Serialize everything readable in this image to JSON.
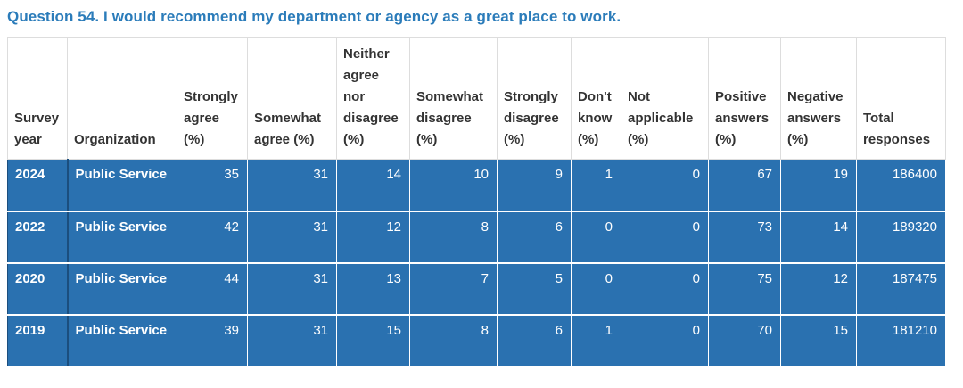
{
  "title": {
    "text": "Question 54. I would recommend my department or agency as a great place to work."
  },
  "colors": {
    "title_blue": "#2b7cba",
    "row_blue": "#2a71b0",
    "row_text": "#ffffff",
    "header_text": "#333333",
    "border_light": "#dddddd",
    "border_dark_blue": "#1b4e7e"
  },
  "table": {
    "columns": [
      "Survey year",
      "Organization",
      "Strongly agree (%)",
      "Somewhat agree (%)",
      "Neither agree nor disagree (%)",
      "Somewhat disagree (%)",
      "Strongly disagree (%)",
      "Don't know (%)",
      "Not applicable (%)",
      "Positive answers (%)",
      "Negative answers (%)",
      "Total responses"
    ],
    "rows": [
      {
        "survey_year": "2024",
        "organization": "Public Service",
        "values": [
          "35",
          "31",
          "14",
          "10",
          "9",
          "1",
          "0",
          "67",
          "19",
          "186400"
        ]
      },
      {
        "survey_year": "2022",
        "organization": "Public Service",
        "values": [
          "42",
          "31",
          "12",
          "8",
          "6",
          "0",
          "0",
          "73",
          "14",
          "189320"
        ]
      },
      {
        "survey_year": "2020",
        "organization": "Public Service",
        "values": [
          "44",
          "31",
          "13",
          "7",
          "5",
          "0",
          "0",
          "75",
          "12",
          "187475"
        ]
      },
      {
        "survey_year": "2019",
        "organization": "Public Service",
        "values": [
          "39",
          "31",
          "15",
          "8",
          "6",
          "1",
          "0",
          "70",
          "15",
          "181210"
        ]
      }
    ]
  }
}
